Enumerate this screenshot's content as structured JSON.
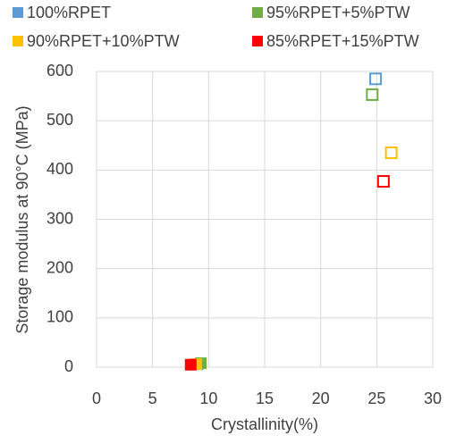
{
  "chart_data": {
    "type": "scatter",
    "xlabel": "Crystallinity(%)",
    "ylabel": "Storage modulus at 90°C (MPa)",
    "xlim": [
      0,
      30
    ],
    "xticks": [
      0,
      5,
      10,
      15,
      20,
      25,
      30
    ],
    "ylim": [
      0,
      600
    ],
    "yticks": [
      0,
      100,
      200,
      300,
      400,
      500,
      600
    ],
    "grid": true,
    "series": [
      {
        "name": "100%RPET",
        "color": "#5b9bd5",
        "x": [
          9.0,
          24.9
        ],
        "values": [
          6,
          585
        ],
        "hollow": [
          false,
          true
        ]
      },
      {
        "name": "95%RPET+5%PTW",
        "color": "#70ad47",
        "x": [
          9.3,
          24.6
        ],
        "values": [
          8,
          553
        ],
        "hollow": [
          false,
          true
        ]
      },
      {
        "name": "90%RPET+10%PTW",
        "color": "#ffc000",
        "x": [
          8.9,
          26.3
        ],
        "values": [
          6,
          435
        ],
        "hollow": [
          false,
          true
        ]
      },
      {
        "name": "85%RPET+15%PTW",
        "color": "#ff0000",
        "x": [
          8.4,
          25.6
        ],
        "values": [
          5,
          377
        ],
        "hollow": [
          false,
          true
        ]
      }
    ]
  }
}
